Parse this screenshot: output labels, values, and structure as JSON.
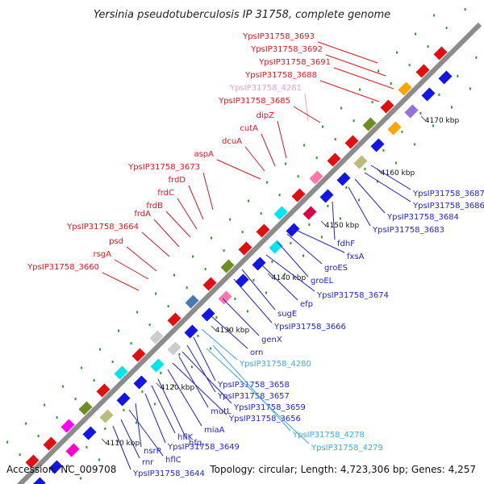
{
  "title": "Yersinia pseudotuberculosis IP 31758, complete genome",
  "footer": {
    "accession": "Accession: NC_009708",
    "topology": "Topology: circular; Length: 4,723,306 bp; Genes: 4,257"
  },
  "colors": {
    "backbone": "#8c8c8c",
    "forward_label": "#e0141e",
    "reverse_label": "#1e1edc",
    "rna_label": "#3aaae6",
    "pseudo_label": "#f0a0c8"
  },
  "ticks": [
    "4170 kbp",
    "4160 kbp",
    "4150 kbp",
    "4140 kbp",
    "4130 kbp",
    "4120 kbp",
    "4110 kbp"
  ],
  "forward_labels": [
    {
      "text": "YpsIP31758_3693",
      "kind": "forward"
    },
    {
      "text": "YpsIP31758_3692",
      "kind": "forward"
    },
    {
      "text": "YpsIP31758_3691",
      "kind": "forward"
    },
    {
      "text": "YpsIP31758_3688",
      "kind": "forward"
    },
    {
      "text": "YpsIP31758_4281",
      "kind": "pseudo"
    },
    {
      "text": "YpsIP31758_3685",
      "kind": "forward"
    },
    {
      "text": "dipZ",
      "kind": "forward"
    },
    {
      "text": "cutA",
      "kind": "forward"
    },
    {
      "text": "dcuA",
      "kind": "forward"
    },
    {
      "text": "aspA",
      "kind": "forward"
    },
    {
      "text": "YpsIP31758_3673",
      "kind": "forward"
    },
    {
      "text": "frdD",
      "kind": "forward"
    },
    {
      "text": "frdC",
      "kind": "forward"
    },
    {
      "text": "frdB",
      "kind": "forward"
    },
    {
      "text": "frdA",
      "kind": "forward"
    },
    {
      "text": "YpsIP31758_3664",
      "kind": "forward"
    },
    {
      "text": "psd",
      "kind": "forward"
    },
    {
      "text": "rsgA",
      "kind": "forward"
    },
    {
      "text": "YpsIP31758_3660",
      "kind": "forward"
    }
  ],
  "reverse_labels": [
    {
      "text": "YpsIP31758_3687",
      "kind": "reverse"
    },
    {
      "text": "YpsIP31758_3686",
      "kind": "reverse"
    },
    {
      "text": "YpsIP31758_3684",
      "kind": "reverse"
    },
    {
      "text": "YpsIP31758_3683",
      "kind": "reverse"
    },
    {
      "text": "fdhF",
      "kind": "reverse"
    },
    {
      "text": "fxsA",
      "kind": "reverse"
    },
    {
      "text": "groES",
      "kind": "reverse"
    },
    {
      "text": "groEL",
      "kind": "reverse"
    },
    {
      "text": "YpsIP31758_3674",
      "kind": "reverse"
    },
    {
      "text": "efp",
      "kind": "reverse"
    },
    {
      "text": "sugE",
      "kind": "reverse"
    },
    {
      "text": "YpsIP31758_3666",
      "kind": "reverse"
    },
    {
      "text": "genX",
      "kind": "reverse"
    },
    {
      "text": "orn",
      "kind": "reverse"
    },
    {
      "text": "YpsIP31758_4280",
      "kind": "rna"
    },
    {
      "text": "YpsIP31758_3658",
      "kind": "reverse"
    },
    {
      "text": "YpsIP31758_3657",
      "kind": "reverse"
    },
    {
      "text": "YpsIP31758_3659",
      "kind": "reverse"
    },
    {
      "text": "mutL",
      "kind": "reverse"
    },
    {
      "text": "YpsIP31758_3656",
      "kind": "reverse"
    },
    {
      "text": "YpsIP31758_4278",
      "kind": "rna"
    },
    {
      "text": "miaA",
      "kind": "reverse"
    },
    {
      "text": "hfq",
      "kind": "reverse"
    },
    {
      "text": "YpsIP31758_4279",
      "kind": "rna"
    },
    {
      "text": "hflK",
      "kind": "reverse"
    },
    {
      "text": "YpsIP31758_3649",
      "kind": "reverse"
    },
    {
      "text": "nsrR",
      "kind": "reverse"
    },
    {
      "text": "hflC",
      "kind": "reverse"
    },
    {
      "text": "rnr",
      "kind": "reverse"
    },
    {
      "text": "YpsIP31758_3644",
      "kind": "reverse"
    }
  ]
}
